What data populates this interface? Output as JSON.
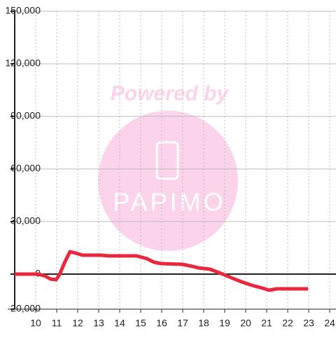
{
  "chart_data": {
    "type": "line",
    "watermark": "Powered by",
    "watermark_logo": "PAPIMO",
    "x": [
      9,
      10.13,
      10.47,
      10.7,
      10.97,
      11.13,
      11.37,
      11.63,
      11.9,
      12.23,
      13.13,
      13.47,
      14.8,
      15.3,
      15.63,
      15.97,
      16.97,
      17.47,
      17.73,
      18.3,
      18.9,
      19.3,
      19.8,
      20.3,
      20.8,
      21.13,
      21.47,
      22.97
    ],
    "series": [
      {
        "color": "#e8283c",
        "values": [
          0,
          0,
          -1200,
          -2800,
          -3200,
          -400,
          6400,
          12800,
          12000,
          10800,
          10800,
          10400,
          10400,
          8800,
          6800,
          6000,
          5600,
          4400,
          3600,
          2800,
          0,
          -2000,
          -4400,
          -6400,
          -8000,
          -9200,
          -8400,
          -8400
        ]
      }
    ],
    "xlim": [
      9,
      24.3
    ],
    "xticks": [
      10,
      11,
      12,
      13,
      14,
      15,
      16,
      17,
      18,
      19,
      20,
      21,
      22,
      23,
      24
    ],
    "ylim": [
      -20000,
      150000
    ],
    "yticks": [
      {
        "value": -20000,
        "label": "-20,000"
      },
      0,
      {
        "value": 30000,
        "label": "30,000"
      },
      {
        "value": 60000,
        "label": "60,000"
      },
      {
        "value": 90000,
        "label": "90,000"
      },
      {
        "value": 120000,
        "label": "120,000"
      },
      {
        "value": 150000,
        "label": "150,000"
      }
    ],
    "grid": true
  }
}
